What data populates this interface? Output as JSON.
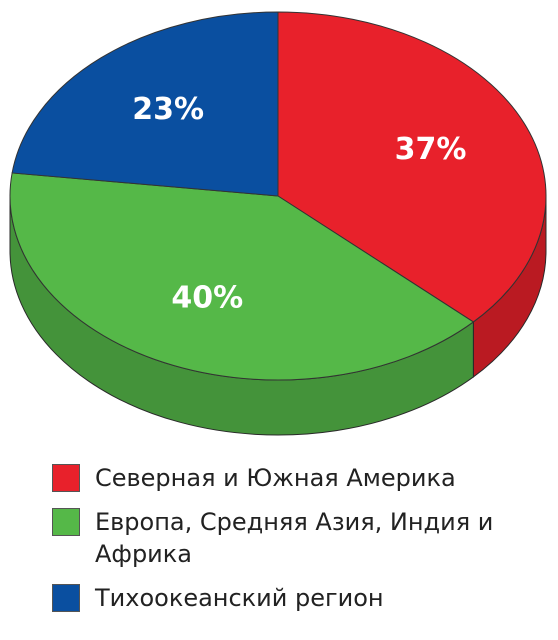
{
  "chart_data": {
    "type": "pie",
    "categories": [
      "Северная и Южная Америка",
      "Европа, Средняя Азия, Индия и Африка",
      "Тихоокеанский регион"
    ],
    "values": [
      37,
      40,
      23
    ],
    "value_labels": [
      "37%",
      "40%",
      "23%"
    ],
    "colors": [
      "#e8212b",
      "#55b848",
      "#0a4fa0"
    ]
  }
}
